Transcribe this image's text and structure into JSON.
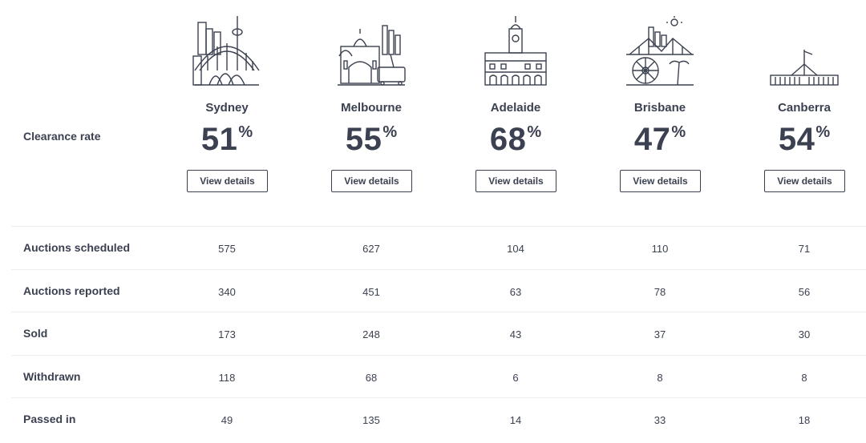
{
  "clearance_label": "Clearance rate",
  "view_details_label": "View details",
  "percent_sign": "%",
  "cities": [
    {
      "name": "Sydney",
      "rate": "51",
      "icon": "sydney-harbour-icon"
    },
    {
      "name": "Melbourne",
      "rate": "55",
      "icon": "melbourne-flinders-icon"
    },
    {
      "name": "Adelaide",
      "rate": "68",
      "icon": "adelaide-town-hall-icon"
    },
    {
      "name": "Brisbane",
      "rate": "47",
      "icon": "brisbane-bridge-wheel-icon"
    },
    {
      "name": "Canberra",
      "rate": "54",
      "icon": "canberra-parliament-icon"
    }
  ],
  "rows": [
    {
      "label": "Auctions scheduled",
      "values": [
        "575",
        "627",
        "104",
        "110",
        "71"
      ]
    },
    {
      "label": "Auctions reported",
      "values": [
        "340",
        "451",
        "63",
        "78",
        "56"
      ]
    },
    {
      "label": "Sold",
      "values": [
        "173",
        "248",
        "43",
        "37",
        "30"
      ]
    },
    {
      "label": "Withdrawn",
      "values": [
        "118",
        "68",
        "6",
        "8",
        "8"
      ]
    },
    {
      "label": "Passed in",
      "values": [
        "49",
        "135",
        "14",
        "33",
        "18"
      ]
    }
  ],
  "colors": {
    "text": "#3b4150",
    "divider": "#eceef1",
    "icon_stroke": "#3b4150"
  }
}
